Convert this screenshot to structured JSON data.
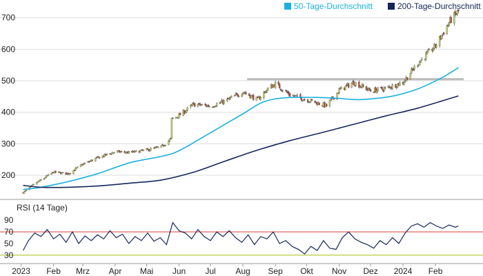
{
  "legend": {
    "ma50_label": "50-Tage-Durchschnitt",
    "ma200_label": "200-Tage-Durchschnitt"
  },
  "rsi_panel": {
    "title": "RSI (14 Tage)"
  },
  "colors": {
    "ma50": "#1ab0e0",
    "ma200": "#14265a",
    "candle_up": "#c9d36b",
    "candle_down": "#c0504d",
    "wick": "#333333",
    "rsi_line": "#14265a",
    "overbought": "#d9534f",
    "oversold": "#b8cc3c",
    "resistance": "#bbbbbb",
    "grid": "#dddddd"
  },
  "chart_data": [
    {
      "type": "candlestick",
      "title": "",
      "ylim": [
        130,
        730
      ],
      "yticks": [
        200,
        300,
        400,
        500,
        600,
        700
      ],
      "grid": true,
      "legend_position": "top-right",
      "x_labels": [
        "2023",
        "Feb",
        "Mrz",
        "Apr",
        "Mai",
        "Jun",
        "Jul",
        "Aug",
        "Sep",
        "Okt",
        "Nov",
        "Dez",
        "2024",
        "Feb"
      ],
      "x_label_dates": [
        "2023-01-01",
        "2023-02-01",
        "2023-03-01",
        "2023-04-01",
        "2023-05-01",
        "2023-06-01",
        "2023-07-01",
        "2023-08-01",
        "2023-09-01",
        "2023-10-01",
        "2023-11-01",
        "2023-12-01",
        "2024-01-01",
        "2024-02-01"
      ],
      "x_range": [
        "2022-12-29",
        "2024-02-28"
      ],
      "price_points": {
        "dates": [
          "2023-01-03",
          "2023-01-15",
          "2023-02-01",
          "2023-02-15",
          "2023-03-01",
          "2023-03-15",
          "2023-04-01",
          "2023-04-15",
          "2023-05-01",
          "2023-05-15",
          "2023-05-24",
          "2023-05-25",
          "2023-06-01",
          "2023-06-15",
          "2023-07-01",
          "2023-07-15",
          "2023-08-01",
          "2023-08-15",
          "2023-08-25",
          "2023-09-01",
          "2023-09-15",
          "2023-10-01",
          "2023-10-20",
          "2023-11-01",
          "2023-11-15",
          "2023-12-01",
          "2023-12-15",
          "2024-01-01",
          "2024-01-15",
          "2024-02-01",
          "2024-02-15",
          "2024-02-23"
        ],
        "close": [
          145,
          175,
          210,
          205,
          235,
          255,
          275,
          272,
          280,
          290,
          315,
          378,
          390,
          425,
          420,
          435,
          465,
          440,
          475,
          490,
          455,
          440,
          420,
          470,
          495,
          468,
          475,
          495,
          555,
          610,
          690,
          720
        ]
      },
      "series": [
        {
          "name": "50-Tage-Durchschnitt",
          "dates": [
            "2023-01-03",
            "2023-01-20",
            "2023-02-15",
            "2023-03-15",
            "2023-04-15",
            "2023-05-15",
            "2023-06-01",
            "2023-07-01",
            "2023-08-01",
            "2023-08-20",
            "2023-09-10",
            "2023-10-10",
            "2023-11-01",
            "2023-11-20",
            "2023-12-20",
            "2024-01-10",
            "2024-01-25",
            "2024-02-10",
            "2024-02-23"
          ],
          "values": [
            155,
            162,
            180,
            205,
            240,
            260,
            278,
            335,
            395,
            432,
            446,
            447,
            444,
            440,
            450,
            468,
            488,
            515,
            542
          ]
        },
        {
          "name": "200-Tage-Durchschnitt",
          "dates": [
            "2023-01-03",
            "2023-01-20",
            "2023-02-15",
            "2023-03-15",
            "2023-04-15",
            "2023-05-15",
            "2023-06-15",
            "2023-07-15",
            "2023-08-15",
            "2023-09-15",
            "2023-10-15",
            "2023-11-15",
            "2023-12-15",
            "2024-01-15",
            "2024-02-23"
          ],
          "values": [
            168,
            162,
            162,
            166,
            175,
            185,
            210,
            245,
            280,
            310,
            335,
            362,
            388,
            413,
            452
          ]
        }
      ],
      "resistance": {
        "value": 505,
        "start": "2023-08-05",
        "end": "2024-02-28"
      }
    },
    {
      "type": "line",
      "title": "RSI (14 Tage)",
      "ylim": [
        25,
        95
      ],
      "yticks": [
        30,
        50,
        70,
        90
      ],
      "grid": false,
      "series": [
        {
          "name": "RSI (14 Tage)",
          "dates": [
            "2023-01-03",
            "2023-01-08",
            "2023-01-14",
            "2023-01-20",
            "2023-01-26",
            "2023-02-01",
            "2023-02-07",
            "2023-02-13",
            "2023-02-19",
            "2023-02-25",
            "2023-03-03",
            "2023-03-09",
            "2023-03-15",
            "2023-03-21",
            "2023-03-27",
            "2023-04-02",
            "2023-04-08",
            "2023-04-14",
            "2023-04-20",
            "2023-04-26",
            "2023-05-02",
            "2023-05-08",
            "2023-05-14",
            "2023-05-20",
            "2023-05-26",
            "2023-06-01",
            "2023-06-07",
            "2023-06-13",
            "2023-06-19",
            "2023-06-25",
            "2023-07-01",
            "2023-07-07",
            "2023-07-13",
            "2023-07-19",
            "2023-07-25",
            "2023-07-31",
            "2023-08-06",
            "2023-08-12",
            "2023-08-18",
            "2023-08-24",
            "2023-08-30",
            "2023-09-05",
            "2023-09-11",
            "2023-09-17",
            "2023-09-23",
            "2023-09-29",
            "2023-10-05",
            "2023-10-11",
            "2023-10-17",
            "2023-10-23",
            "2023-10-29",
            "2023-11-04",
            "2023-11-10",
            "2023-11-16",
            "2023-11-22",
            "2023-11-28",
            "2023-12-04",
            "2023-12-10",
            "2023-12-16",
            "2023-12-22",
            "2023-12-28",
            "2024-01-03",
            "2024-01-09",
            "2024-01-15",
            "2024-01-21",
            "2024-01-27",
            "2024-02-02",
            "2024-02-08",
            "2024-02-14",
            "2024-02-20",
            "2024-02-23"
          ],
          "values": [
            38,
            55,
            68,
            62,
            74,
            58,
            66,
            52,
            70,
            50,
            63,
            55,
            65,
            58,
            72,
            60,
            66,
            50,
            62,
            55,
            68,
            54,
            60,
            48,
            86,
            72,
            68,
            58,
            74,
            62,
            55,
            70,
            62,
            72,
            60,
            52,
            65,
            48,
            62,
            58,
            70,
            50,
            55,
            45,
            40,
            32,
            45,
            38,
            55,
            42,
            40,
            60,
            70,
            58,
            52,
            48,
            42,
            55,
            48,
            60,
            50,
            68,
            80,
            84,
            78,
            86,
            80,
            76,
            82,
            78,
            80
          ]
        }
      ],
      "reference_lines": [
        {
          "name": "overbought",
          "value": 70
        },
        {
          "name": "oversold",
          "value": 30
        }
      ]
    }
  ]
}
